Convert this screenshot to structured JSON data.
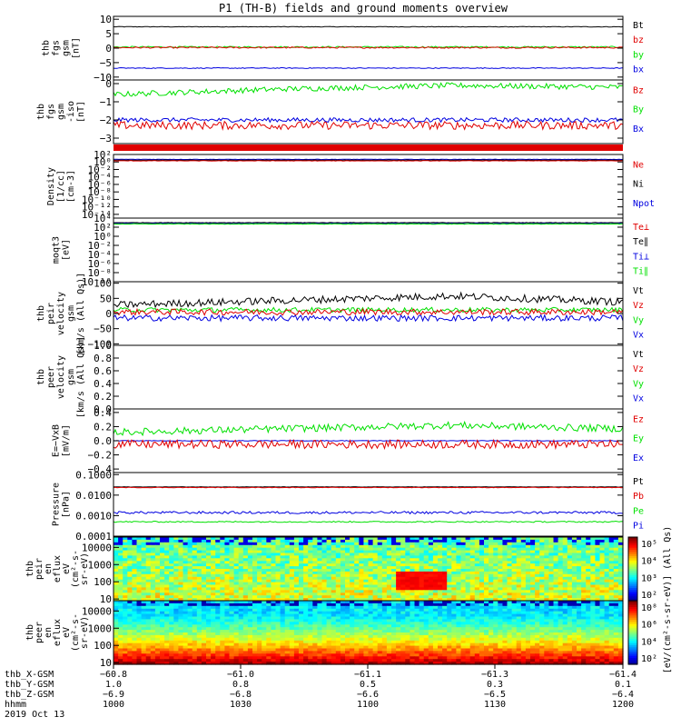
{
  "title": "P1 (TH-B) fields and ground moments overview",
  "date_label": "2019 Oct 13",
  "colors": {
    "black": "#000000",
    "red": "#e00000",
    "green": "#00e000",
    "blue": "#0000e0"
  },
  "panels": [
    {
      "key": "fgs",
      "ylabel": [
        "thb",
        "fgs",
        "gsm",
        "[nT]"
      ],
      "ylim": [
        -11,
        11
      ],
      "ticks": [
        "10",
        "5",
        "0",
        "−5",
        "−10"
      ],
      "tick_values": [
        10,
        5,
        0,
        -5,
        -10
      ],
      "legend": [
        {
          "label": "Bt",
          "color": "black"
        },
        {
          "label": "bz",
          "color": "red"
        },
        {
          "label": "by",
          "color": "green"
        },
        {
          "label": "bx",
          "color": "blue"
        }
      ],
      "series": [
        {
          "color": "black",
          "base": 7.4,
          "noise": 0.1
        },
        {
          "color": "green",
          "base": 0.4,
          "noise": 0.25
        },
        {
          "color": "red",
          "base": 0.2,
          "noise": 0.25
        },
        {
          "color": "blue",
          "base": -6.9,
          "noise": 0.15
        }
      ]
    },
    {
      "key": "fgs_zoom",
      "ylabel": [
        "thb",
        "fgs",
        "gsm",
        "-iso",
        "[nT]"
      ],
      "ylim": [
        -3.3,
        0.2
      ],
      "ticks": [
        "0",
        "−1",
        "−2",
        "−3"
      ],
      "tick_values": [
        0,
        -1,
        -2,
        -3
      ],
      "legend": [
        {
          "label": "Bz",
          "color": "red"
        },
        {
          "label": "By",
          "color": "green"
        },
        {
          "label": "Bx",
          "color": "blue"
        }
      ],
      "series": [
        {
          "color": "green",
          "base": -0.6,
          "noise": 0.15,
          "trend": [
            0,
            0.3,
            0.5,
            0.4
          ]
        },
        {
          "color": "blue",
          "base": -2.0,
          "noise": 0.12
        },
        {
          "color": "red",
          "base": -2.3,
          "noise": 0.22
        }
      ]
    },
    {
      "key": "density",
      "ylabel": [
        "Density",
        "[1/cc]",
        "[cm-3]"
      ],
      "ylim": [
        -15,
        2
      ],
      "log": true,
      "ticks": [
        "10²",
        "10⁰",
        "10⁻²",
        "10⁻⁴",
        "10⁻⁶",
        "10⁻⁸",
        "10⁻¹⁰",
        "10⁻¹²",
        "10⁻¹⁴"
      ],
      "tick_values": [
        2,
        0,
        -2,
        -4,
        -6,
        -8,
        -10,
        -12,
        -14
      ],
      "legend": [
        {
          "label": "Ne",
          "color": "red"
        },
        {
          "label": "Ni",
          "color": "black"
        },
        {
          "label": "Npot",
          "color": "blue"
        }
      ],
      "series": [
        {
          "color": "blue",
          "base": 0.7,
          "noise": 0.05
        },
        {
          "color": "black",
          "base": 0.5,
          "noise": 0.05
        },
        {
          "color": "red",
          "base": 0.3,
          "noise": 0.05
        }
      ]
    },
    {
      "key": "temp",
      "ylabel": [
        "moqt3",
        "[eV]"
      ],
      "ylim": [
        -10,
        4
      ],
      "log": true,
      "ticks": [
        "10⁴",
        "10²",
        "10⁰",
        "10⁻²",
        "10⁻⁴",
        "10⁻⁶",
        "10⁻⁸",
        "10⁻¹⁰"
      ],
      "tick_values": [
        4,
        2,
        0,
        -2,
        -4,
        -6,
        -8,
        -10
      ],
      "legend": [
        {
          "label": "Te⊥",
          "color": "red"
        },
        {
          "label": "Te∥",
          "color": "black"
        },
        {
          "label": "Ti⊥",
          "color": "blue"
        },
        {
          "label": "Ti∥",
          "color": "green"
        }
      ],
      "series": [
        {
          "color": "black",
          "base": 3.0,
          "noise": 0.04
        },
        {
          "color": "blue",
          "base": 2.8,
          "noise": 0.04
        },
        {
          "color": "green",
          "base": 2.7,
          "noise": 0.04
        }
      ]
    },
    {
      "key": "peir_vel",
      "ylabel": [
        "thb",
        "peir",
        "velocity",
        "gsm",
        "[km/s (All Qs)]"
      ],
      "ylim": [
        -105,
        105
      ],
      "ticks": [
        "100",
        "50",
        "0",
        "−50",
        "−100"
      ],
      "tick_values": [
        100,
        50,
        0,
        -50,
        -100
      ],
      "legend": [
        {
          "label": "Vt",
          "color": "black"
        },
        {
          "label": "Vz",
          "color": "red"
        },
        {
          "label": "Vy",
          "color": "green"
        },
        {
          "label": "Vx",
          "color": "blue"
        }
      ],
      "series": [
        {
          "color": "black",
          "base": 28,
          "noise": 12,
          "trend": [
            0,
            15,
            30,
            10
          ]
        },
        {
          "color": "green",
          "base": 12,
          "noise": 8
        },
        {
          "color": "red",
          "base": 5,
          "noise": 10
        },
        {
          "color": "blue",
          "base": -15,
          "noise": 10
        }
      ]
    },
    {
      "key": "peer_vel",
      "ylabel": [
        "thb",
        "peer",
        "velocity",
        "gsm",
        "[km/s (All Qs)]"
      ],
      "ylim": [
        0,
        1
      ],
      "ticks": [
        "1.0",
        "0.8",
        "0.6",
        "0.4",
        "0.2",
        "0.0"
      ],
      "tick_values": [
        1,
        0.8,
        0.6,
        0.4,
        0.2,
        0
      ],
      "legend": [
        {
          "label": "Vt",
          "color": "black"
        },
        {
          "label": "Vz",
          "color": "red"
        },
        {
          "label": "Vy",
          "color": "green"
        },
        {
          "label": "Vx",
          "color": "blue"
        }
      ],
      "series": []
    },
    {
      "key": "efield",
      "ylabel": [
        "E=−VxB",
        "[mV/m]"
      ],
      "ylim": [
        -0.45,
        0.45
      ],
      "ticks": [
        "0.4",
        "0.2",
        "0.0",
        "−0.2",
        "−0.4"
      ],
      "tick_values": [
        0.4,
        0.2,
        0,
        -0.2,
        -0.4
      ],
      "legend": [
        {
          "label": "Ez",
          "color": "red"
        },
        {
          "label": "Ey",
          "color": "green"
        },
        {
          "label": "Ex",
          "color": "blue"
        }
      ],
      "series": [
        {
          "color": "green",
          "base": 0.12,
          "noise": 0.05,
          "trend": [
            0,
            0.05,
            0.1,
            0.05
          ]
        },
        {
          "color": "blue",
          "base": 0.0,
          "noise": 0.005
        },
        {
          "color": "red",
          "base": -0.05,
          "noise": 0.06
        }
      ]
    },
    {
      "key": "pressure",
      "ylabel": [
        "Pressure",
        "[nPa]"
      ],
      "ylim": [
        -4,
        -0.9
      ],
      "log": true,
      "ticks": [
        "0.1000",
        "0.0100",
        "0.0010",
        "0.0001"
      ],
      "tick_values": [
        -1,
        -2,
        -3,
        -4
      ],
      "legend": [
        {
          "label": "Pt",
          "color": "black"
        },
        {
          "label": "Pb",
          "color": "red"
        },
        {
          "label": "Pe",
          "color": "green"
        },
        {
          "label": "Pi",
          "color": "blue"
        }
      ],
      "series": [
        {
          "color": "black",
          "base": -1.6,
          "noise": 0.01
        },
        {
          "color": "red",
          "base": -1.63,
          "noise": 0.01
        },
        {
          "color": "blue",
          "base": -2.85,
          "noise": 0.06
        },
        {
          "color": "green",
          "base": -3.3,
          "noise": 0.03
        }
      ]
    }
  ],
  "spectrograms": [
    {
      "key": "peir_eflux",
      "ylabel": [
        "thb",
        "peir",
        "en",
        "eflux",
        "eV",
        "(cm²-s-",
        "sr-eV)"
      ],
      "ticks": [
        "10000",
        "1000",
        "100",
        "10"
      ],
      "tick_values": [
        4,
        3,
        2,
        1
      ],
      "ylim": [
        0.9,
        4.6
      ],
      "colorbar_ticks": [
        "10⁵",
        "10⁴",
        "10³",
        "10²"
      ],
      "colorbar_label": "[eV/(cm²-s-sr-eV)] (All Qs)"
    },
    {
      "key": "peer_eflux",
      "ylabel": [
        "thb",
        "peer",
        "en",
        "eflux",
        "eV",
        "(cm²-s-",
        "sr-eV)"
      ],
      "ticks": [
        "10000",
        "1000",
        "100",
        "10"
      ],
      "tick_values": [
        4,
        3,
        2,
        1
      ],
      "ylim": [
        0.9,
        4.6
      ],
      "colorbar_ticks": [
        "10⁸",
        "10⁶",
        "10⁴",
        "10²"
      ],
      "colorbar_label": "[eV/(cm²-s-sr-eV)]"
    }
  ],
  "xaxis": {
    "rows": [
      {
        "label": "thb_X-GSM",
        "values": [
          "−60.8",
          "−61.0",
          "−61.1",
          "−61.3",
          "−61.4"
        ]
      },
      {
        "label": "thb_Y-GSM",
        "values": [
          "1.0",
          "0.8",
          "0.5",
          "0.3",
          "0.1"
        ]
      },
      {
        "label": "thb_Z-GSM",
        "values": [
          "−6.9",
          "−6.8",
          "−6.6",
          "−6.5",
          "−6.4"
        ]
      },
      {
        "label": "hhmm",
        "values": [
          "1000",
          "1030",
          "1100",
          "1130",
          "1200"
        ]
      }
    ]
  },
  "chart_data": {
    "type": "line",
    "title": "P1 (TH-B) fields and ground moments overview",
    "x": [
      "1000",
      "1030",
      "1100",
      "1130",
      "1200"
    ],
    "xlabel": "hhmm",
    "series": [
      {
        "name": "Bt",
        "values": [
          7.4,
          7.4,
          7.5,
          7.5,
          7.4
        ]
      },
      {
        "name": "bz",
        "values": [
          0.2,
          0.2,
          0.3,
          0.2,
          0.2
        ]
      },
      {
        "name": "by",
        "values": [
          0.4,
          0.4,
          0.5,
          0.4,
          0.4
        ]
      },
      {
        "name": "bx",
        "values": [
          -6.9,
          -7.0,
          -7.0,
          -6.9,
          -6.9
        ]
      },
      {
        "name": "Vt",
        "values": [
          25,
          35,
          55,
          45,
          30
        ]
      },
      {
        "name": "Vx",
        "values": [
          -15,
          -12,
          -20,
          -18,
          -15
        ]
      },
      {
        "name": "Ez",
        "values": [
          -0.05,
          -0.08,
          -0.1,
          -0.05,
          -0.04
        ]
      },
      {
        "name": "Ey",
        "values": [
          0.12,
          0.15,
          0.2,
          0.18,
          0.12
        ]
      }
    ]
  }
}
